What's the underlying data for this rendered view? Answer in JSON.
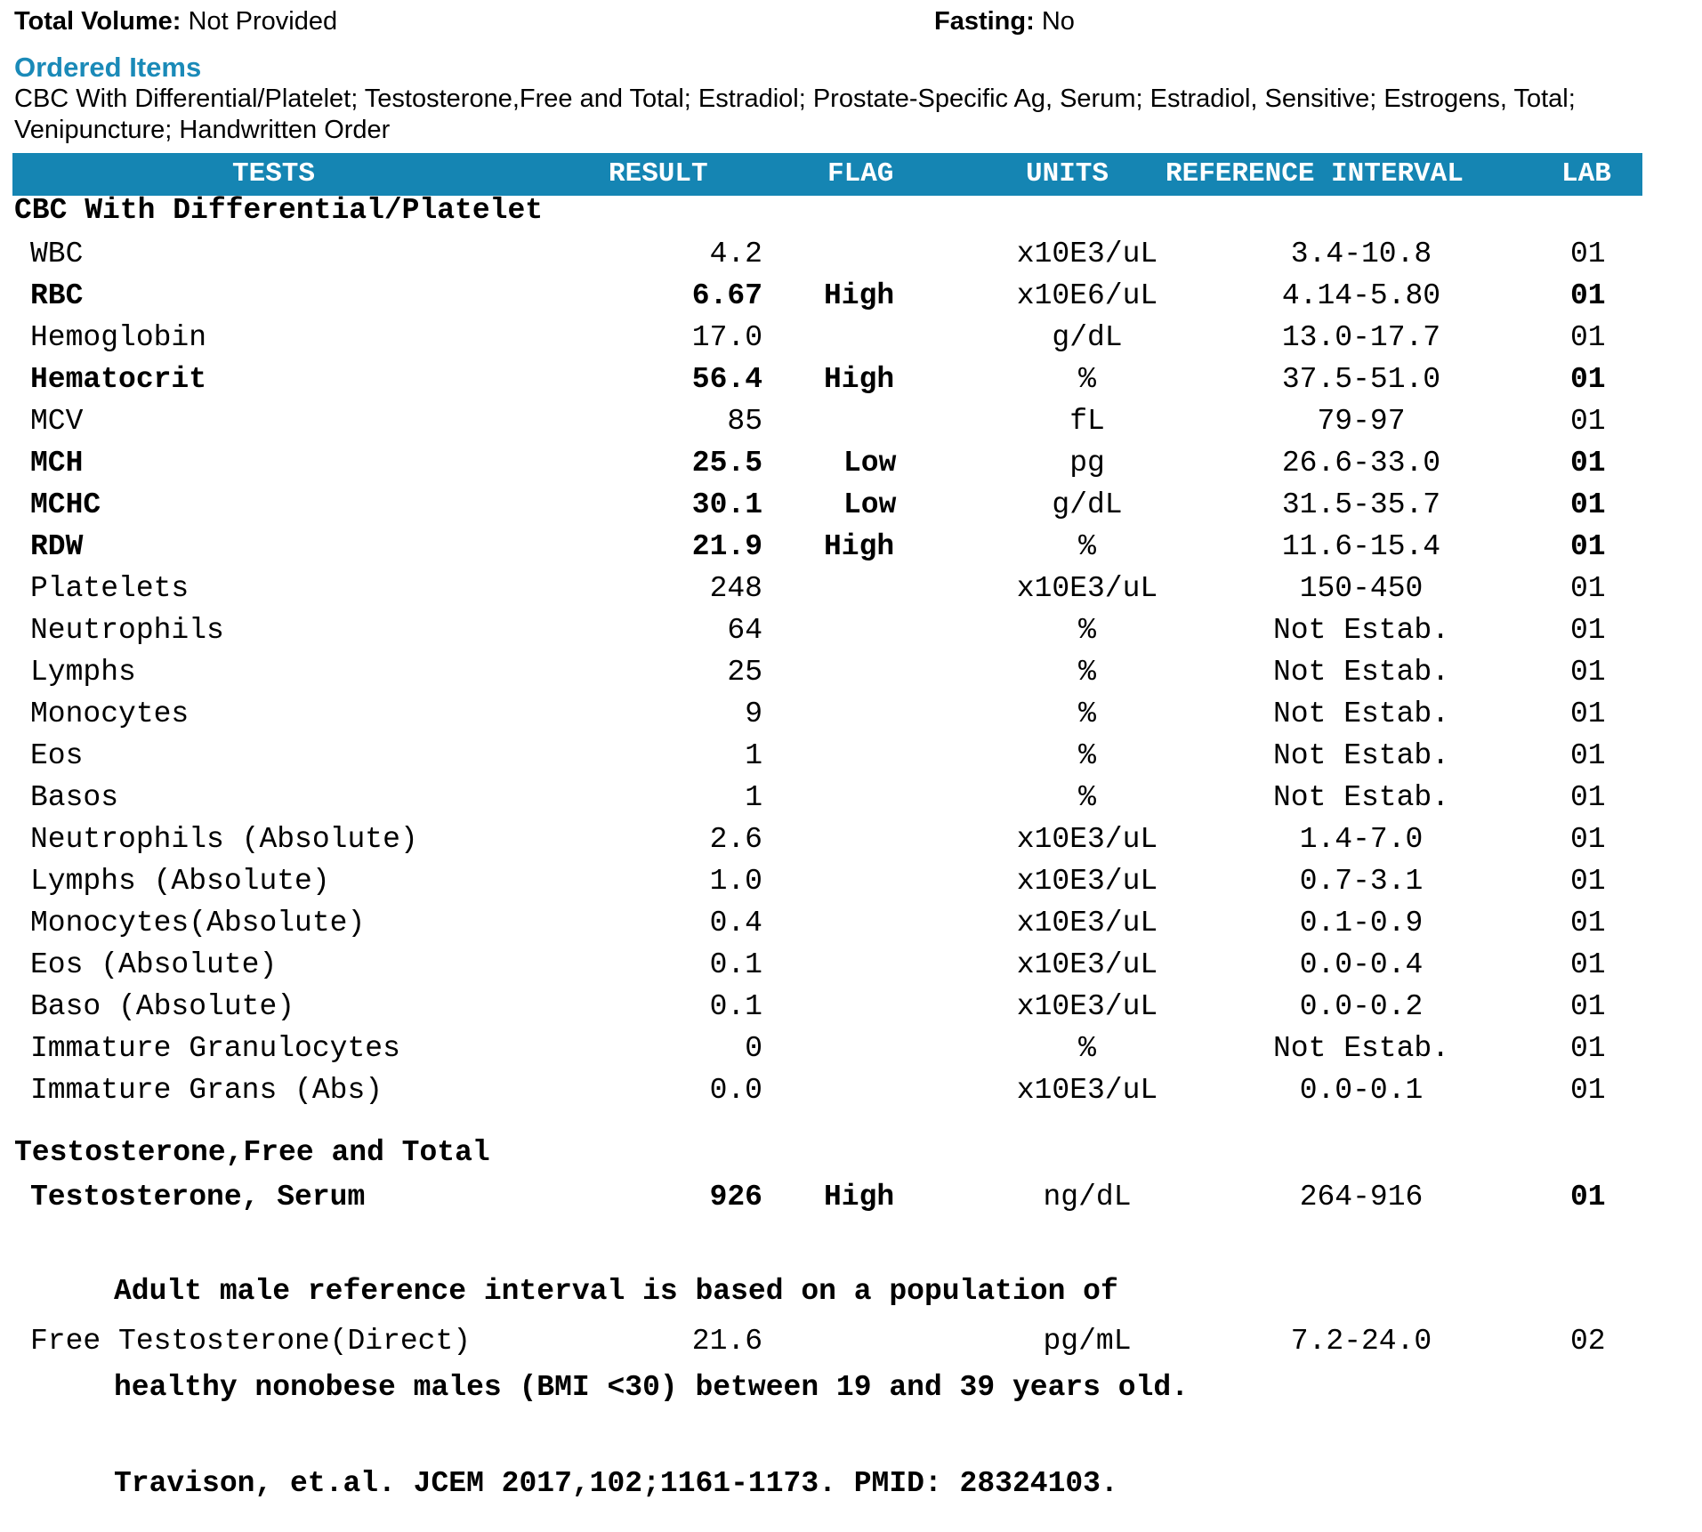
{
  "header_info": {
    "total_volume_label": "Total Volume:",
    "total_volume_value": " Not Provided",
    "fasting_label": "Fasting:",
    "fasting_value": " No"
  },
  "ordered_items": {
    "title": "Ordered Items",
    "text": "CBC With Differential/Platelet; Testosterone,Free and Total; Estradiol; Prostate-Specific Ag, Serum; Estradiol, Sensitive; Estrogens, Total; Venipuncture; Handwritten Order"
  },
  "table_header": {
    "tests": "TESTS",
    "result": "RESULT",
    "flag": "FLAG",
    "units": "UNITS",
    "reference": "REFERENCE INTERVAL",
    "lab": "LAB"
  },
  "sections": {
    "cbc": {
      "title": "CBC With Differential/Platelet",
      "rows": [
        {
          "test": "WBC",
          "result": "4.2",
          "flag": "",
          "units": "x10E3/uL",
          "ref": "3.4-10.8",
          "lab": "01"
        },
        {
          "test": "RBC",
          "result": "6.67",
          "flag": "High",
          "units": "x10E6/uL",
          "ref": "4.14-5.80",
          "lab": "01"
        },
        {
          "test": "Hemoglobin",
          "result": "17.0",
          "flag": "",
          "units": "g/dL",
          "ref": "13.0-17.7",
          "lab": "01"
        },
        {
          "test": "Hematocrit",
          "result": "56.4",
          "flag": "High",
          "units": "%",
          "ref": "37.5-51.0",
          "lab": "01"
        },
        {
          "test": "MCV",
          "result": "85",
          "flag": "",
          "units": "fL",
          "ref": "79-97",
          "lab": "01"
        },
        {
          "test": "MCH",
          "result": "25.5",
          "flag": "Low",
          "units": "pg",
          "ref": "26.6-33.0",
          "lab": "01"
        },
        {
          "test": "MCHC",
          "result": "30.1",
          "flag": "Low",
          "units": "g/dL",
          "ref": "31.5-35.7",
          "lab": "01"
        },
        {
          "test": "RDW",
          "result": "21.9",
          "flag": "High",
          "units": "%",
          "ref": "11.6-15.4",
          "lab": "01"
        },
        {
          "test": "Platelets",
          "result": "248",
          "flag": "",
          "units": "x10E3/uL",
          "ref": "150-450",
          "lab": "01"
        },
        {
          "test": "Neutrophils",
          "result": "64",
          "flag": "",
          "units": "%",
          "ref": "Not Estab.",
          "lab": "01"
        },
        {
          "test": "Lymphs",
          "result": "25",
          "flag": "",
          "units": "%",
          "ref": "Not Estab.",
          "lab": "01"
        },
        {
          "test": "Monocytes",
          "result": "9",
          "flag": "",
          "units": "%",
          "ref": "Not Estab.",
          "lab": "01"
        },
        {
          "test": "Eos",
          "result": "1",
          "flag": "",
          "units": "%",
          "ref": "Not Estab.",
          "lab": "01"
        },
        {
          "test": "Basos",
          "result": "1",
          "flag": "",
          "units": "%",
          "ref": "Not Estab.",
          "lab": "01"
        },
        {
          "test": "Neutrophils (Absolute)",
          "result": "2.6",
          "flag": "",
          "units": "x10E3/uL",
          "ref": "1.4-7.0",
          "lab": "01"
        },
        {
          "test": "Lymphs (Absolute)",
          "result": "1.0",
          "flag": "",
          "units": "x10E3/uL",
          "ref": "0.7-3.1",
          "lab": "01"
        },
        {
          "test": "Monocytes(Absolute)",
          "result": "0.4",
          "flag": "",
          "units": "x10E3/uL",
          "ref": "0.1-0.9",
          "lab": "01"
        },
        {
          "test": "Eos (Absolute)",
          "result": "0.1",
          "flag": "",
          "units": "x10E3/uL",
          "ref": "0.0-0.4",
          "lab": "01"
        },
        {
          "test": "Baso (Absolute)",
          "result": "0.1",
          "flag": "",
          "units": "x10E3/uL",
          "ref": "0.0-0.2",
          "lab": "01"
        },
        {
          "test": "Immature Granulocytes",
          "result": "0",
          "flag": "",
          "units": "%",
          "ref": "Not Estab.",
          "lab": "01"
        },
        {
          "test": "Immature Grans (Abs)",
          "result": "0.0",
          "flag": "",
          "units": "x10E3/uL",
          "ref": "0.0-0.1",
          "lab": "01"
        }
      ]
    },
    "testosterone": {
      "title": "Testosterone,Free and Total",
      "rows": [
        {
          "test": "Testosterone, Serum",
          "result": "926",
          "flag": "High",
          "units": "ng/dL",
          "ref": "264-916",
          "lab": "01"
        },
        {
          "test": "Free Testosterone(Direct)",
          "result": "21.6",
          "flag": "",
          "units": "pg/mL",
          "ref": "7.2-24.0",
          "lab": "02"
        }
      ],
      "comment": [
        "Adult male reference interval is based on a population of",
        "healthy nonobese males (BMI <30) between 19 and 39 years old.",
        "Travison, et.al. JCEM 2017,102;1161-1173. PMID: 28324103."
      ]
    }
  }
}
